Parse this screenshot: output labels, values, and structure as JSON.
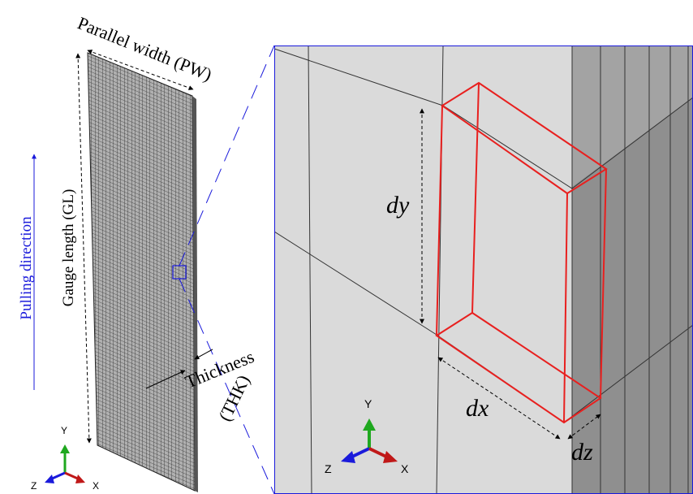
{
  "labels": {
    "parallel_width": "Parallel width (PW)",
    "gauge_length": "Gauge length (GL)",
    "pulling_direction": "Pulling direction",
    "thickness": "Thickness",
    "thickness_abbr": "(THK)",
    "dy": "dy",
    "dx": "dx",
    "dz": "dz"
  },
  "small_triad": {
    "y": "Y",
    "z": "Z",
    "x": "X"
  },
  "large_triad": {
    "y": "Y",
    "z": "Z",
    "x": "X"
  }
}
